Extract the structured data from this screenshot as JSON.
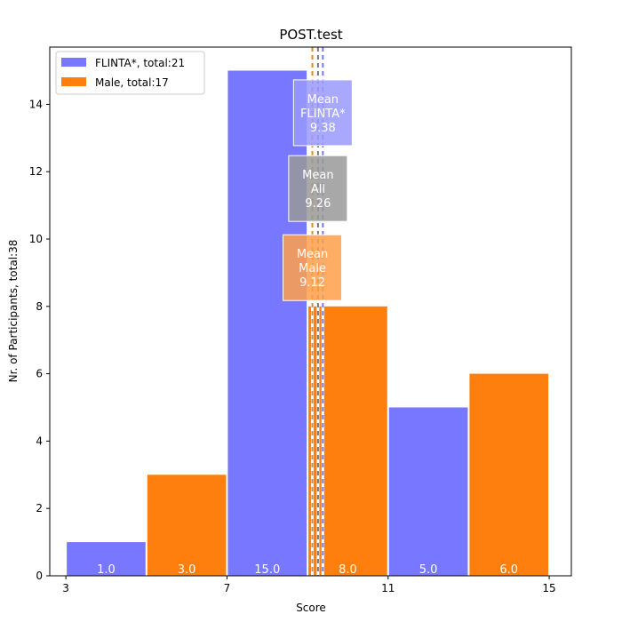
{
  "chart_data": {
    "type": "bar",
    "title": "POST.test",
    "xlabel": "Score",
    "ylabel": "Nr. of Participants, total:38",
    "xlim": [
      2.6,
      15.55
    ],
    "ylim": [
      0,
      15.7
    ],
    "xticks": [
      3,
      7,
      11,
      15
    ],
    "yticks": [
      0,
      2,
      4,
      6,
      8,
      10,
      12,
      14
    ],
    "grid": false,
    "legend_position": "top-left",
    "series": [
      {
        "name": "FLINTA*, total:21",
        "color": "#7777ff",
        "bins": [
          [
            3,
            5
          ],
          [
            7,
            9
          ],
          [
            11,
            13
          ]
        ],
        "values": [
          1,
          15,
          5
        ],
        "labels": [
          "1.0",
          "15.0",
          "5.0"
        ]
      },
      {
        "name": "Male, total:17",
        "color": "#ff7f0e",
        "bins": [
          [
            5,
            7
          ],
          [
            9,
            11
          ],
          [
            13,
            15
          ]
        ],
        "values": [
          3,
          8,
          6
        ],
        "labels": [
          "3.0",
          "8.0",
          "6.0"
        ]
      }
    ],
    "mean_lines": [
      {
        "key": "male",
        "value": 9.12,
        "color": "#ff7f0e"
      },
      {
        "key": "all",
        "value": 9.26,
        "color": "#777777"
      },
      {
        "key": "flinta",
        "value": 9.38,
        "color": "#7777ff"
      }
    ],
    "annotations": [
      {
        "key": "flinta",
        "lines": [
          "Mean",
          "FLINTA*",
          "9.38"
        ],
        "x": 9.38,
        "y": 13.75,
        "color": "#9999ff"
      },
      {
        "key": "all",
        "lines": [
          "Mean",
          "All",
          "9.26"
        ],
        "x": 9.26,
        "y": 11.5,
        "color": "#999999"
      },
      {
        "key": "male",
        "lines": [
          "Mean",
          "Male",
          "9.12"
        ],
        "x": 9.12,
        "y": 9.15,
        "color": "#ff9f4a"
      }
    ]
  }
}
